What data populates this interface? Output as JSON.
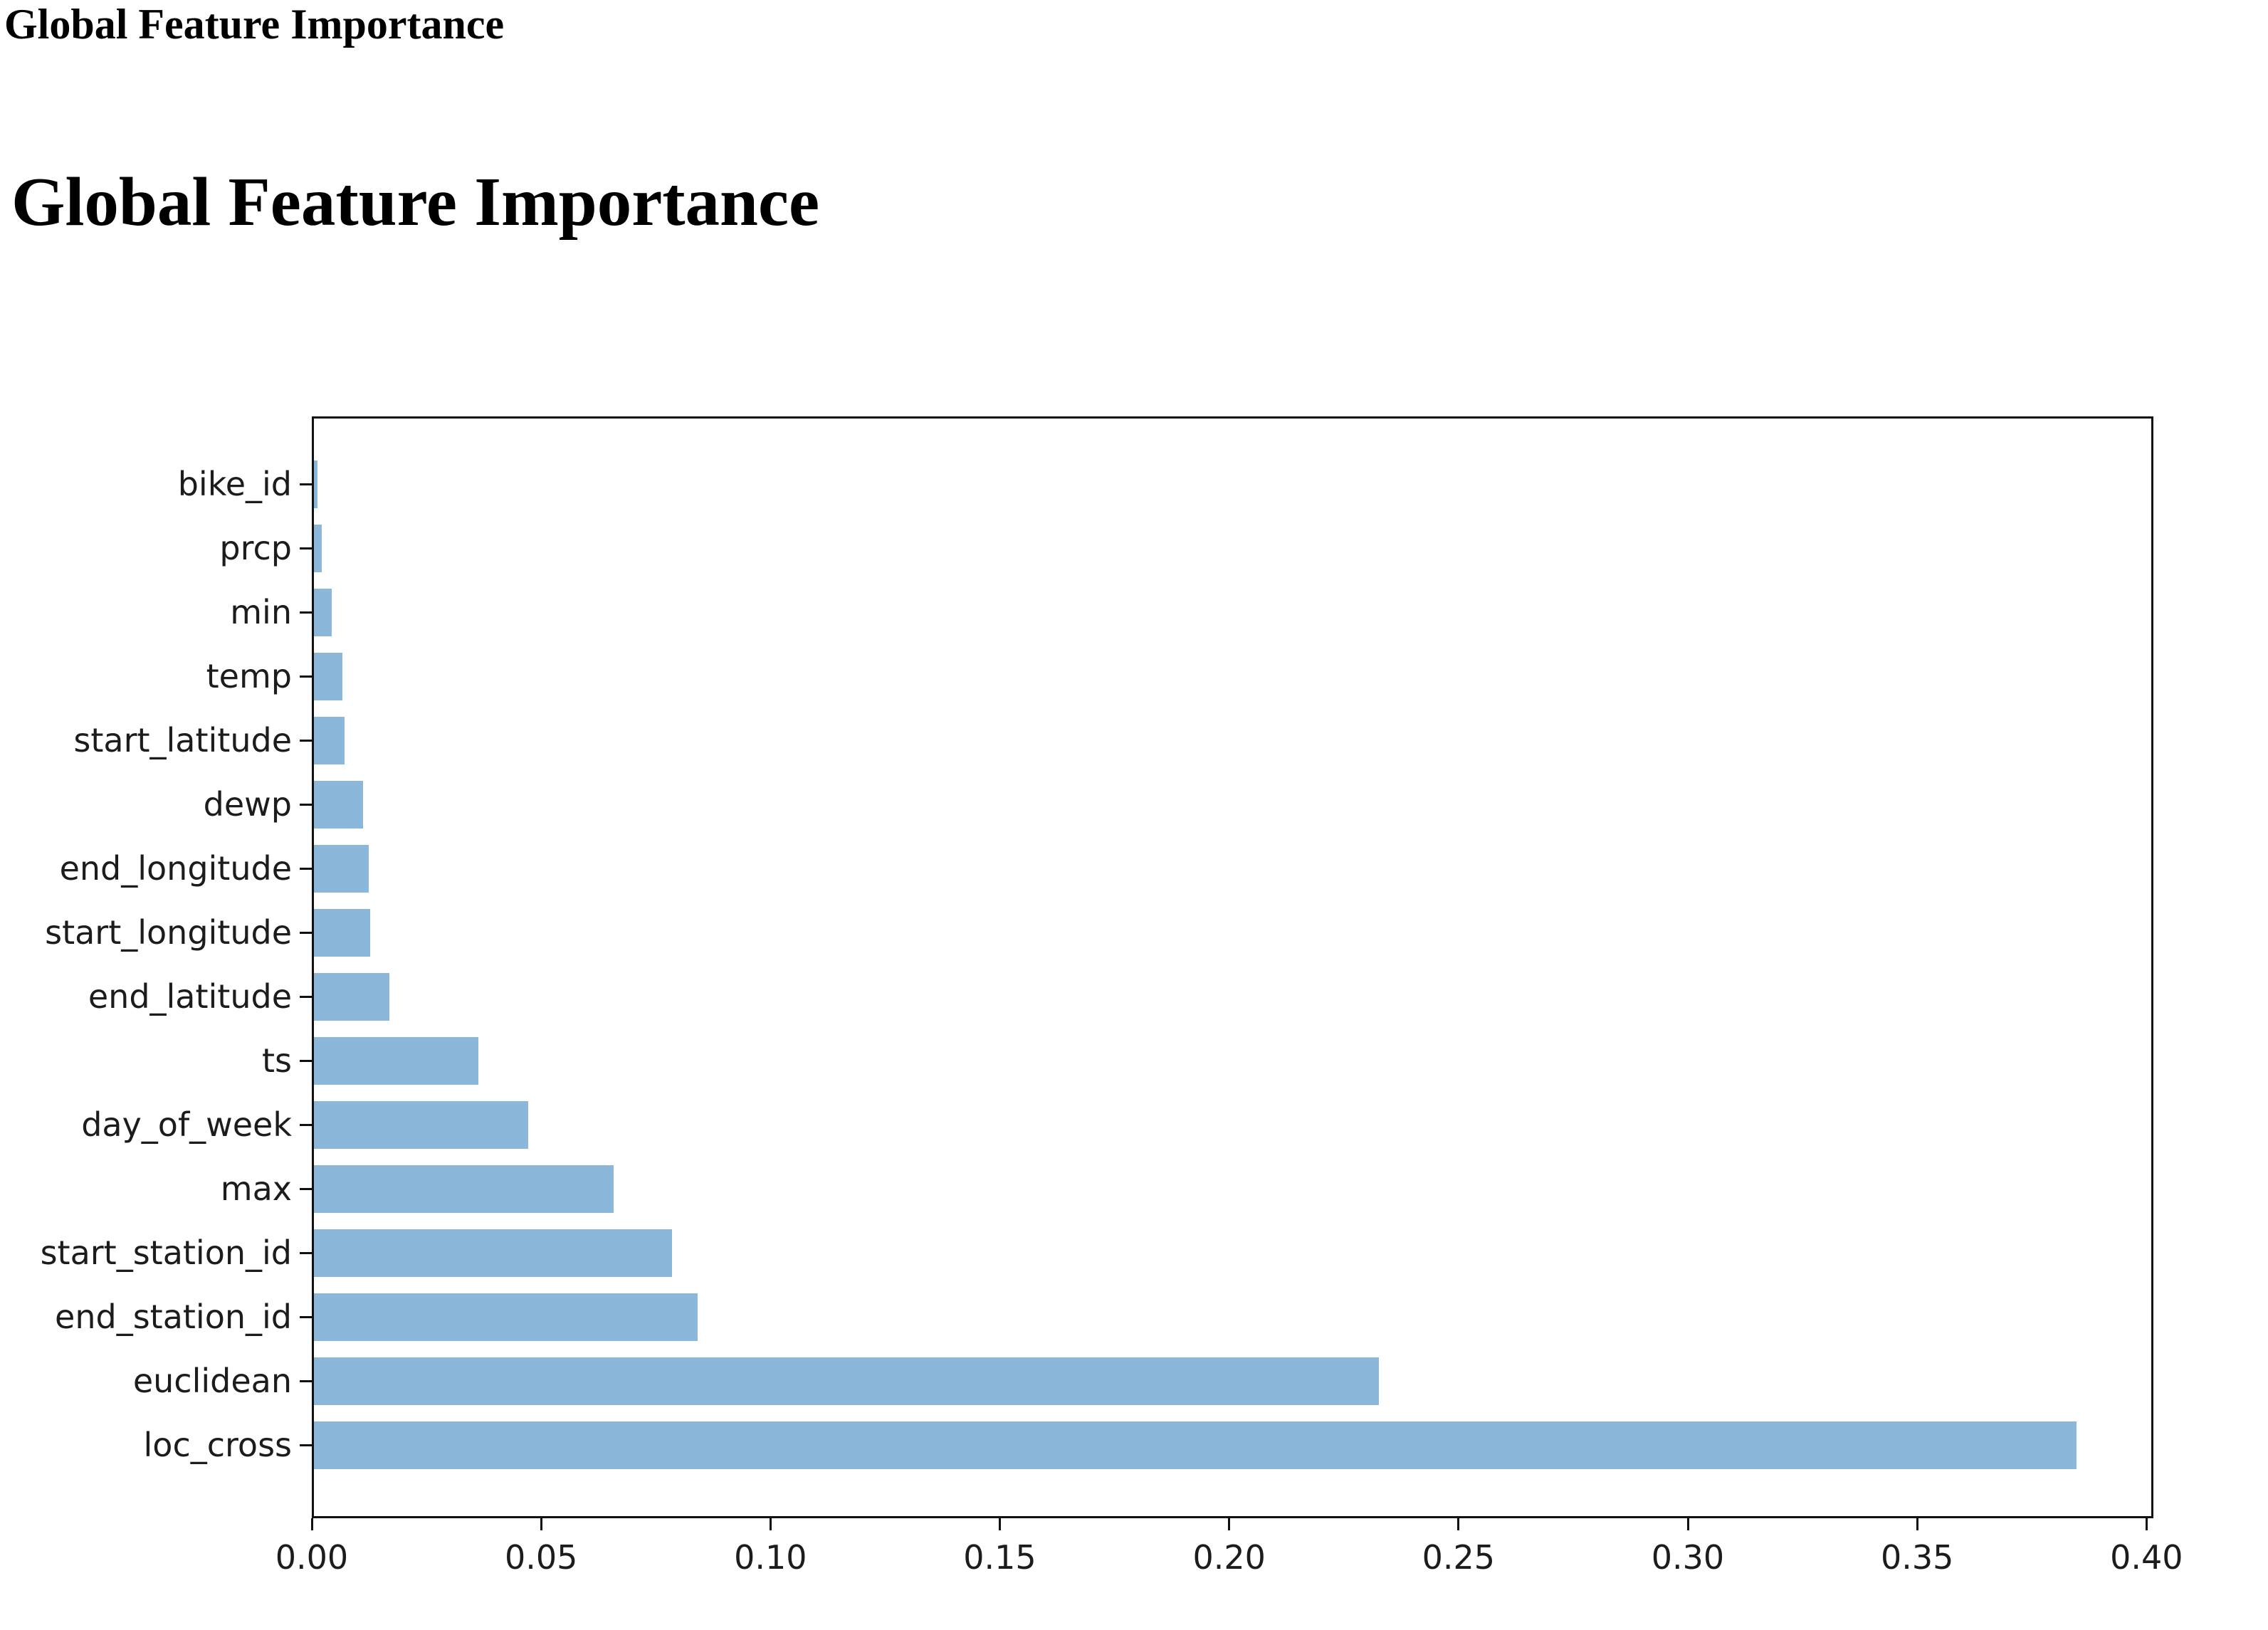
{
  "page": {
    "header_title": "Global Feature Importance",
    "main_title": "Global Feature Importance"
  },
  "chart_data": {
    "type": "bar",
    "orientation": "horizontal",
    "title": "",
    "xlabel": "",
    "ylabel": "",
    "order_note": "values ascend from top bar to bottom bar",
    "categories_top_to_bottom": [
      "bike_id",
      "prcp",
      "min",
      "temp",
      "start_latitude",
      "dewp",
      "end_longitude",
      "start_longitude",
      "end_latitude",
      "ts",
      "day_of_week",
      "max",
      "start_station_id",
      "end_station_id",
      "euclidean",
      "loc_cross"
    ],
    "values": [
      0.0012,
      0.0022,
      0.0043,
      0.0066,
      0.0071,
      0.0112,
      0.0124,
      0.0127,
      0.0169,
      0.0363,
      0.0472,
      0.0658,
      0.0785,
      0.0841,
      0.2327,
      0.3847
    ],
    "xlim": [
      0,
      0.4015
    ],
    "x_ticks": [
      0.0,
      0.05,
      0.1,
      0.15,
      0.2,
      0.25,
      0.3,
      0.35,
      0.4
    ],
    "x_tick_labels": [
      "0.00",
      "0.05",
      "0.10",
      "0.15",
      "0.20",
      "0.25",
      "0.30",
      "0.35",
      "0.40"
    ],
    "bar_color": "#8ab7da",
    "spine_color": "#111111",
    "tick_label_color": "#1c1c1c",
    "grid": false,
    "legend": false
  }
}
